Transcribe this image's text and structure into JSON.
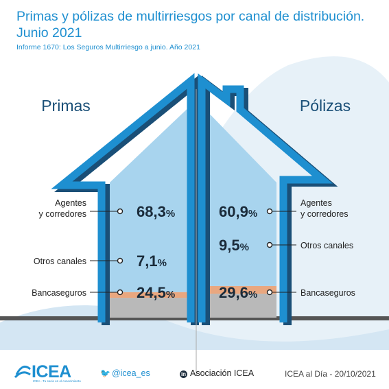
{
  "header": {
    "title": "Primas y pólizas de multirriesgos por canal de distribución. Junio 2021",
    "subtitle": "Informe 1670: Los Seguros Multirriesgo a junio. Año 2021"
  },
  "chart_data": {
    "type": "bar",
    "categories": [
      "Agentes y corredores",
      "Otros canales",
      "Bancaseguros"
    ],
    "series": [
      {
        "name": "Primas",
        "values": [
          68.3,
          7.1,
          24.5
        ]
      },
      {
        "name": "Pólizas",
        "values": [
          60.9,
          9.5,
          29.6
        ]
      }
    ],
    "labels": {
      "primas": [
        "68,3",
        "7,1",
        "24,5"
      ],
      "polizas": [
        "60,9",
        "9,5",
        "29,6"
      ]
    },
    "left_categories": [
      "Agentes",
      "y corredores",
      "Otros canales",
      "Bancaseguros"
    ],
    "right_categories": [
      "Agentes",
      "y corredores",
      "Otros canales",
      "Bancaseguros"
    ],
    "unit": "%",
    "colors": {
      "agentes": "#a8d4ee",
      "otros": "#e9a77f",
      "banca": "#b9b9b9",
      "house": "#1e8fd0",
      "house_shadow": "#1a4f77"
    }
  },
  "footer": {
    "brand": "ICEA",
    "tagline": "ICEA · Tu socio en el conocimiento",
    "twitter": "@icea_es",
    "linkedin": "Asociación ICEA",
    "date_label": "ICEA al Día - 20/10/2021"
  }
}
